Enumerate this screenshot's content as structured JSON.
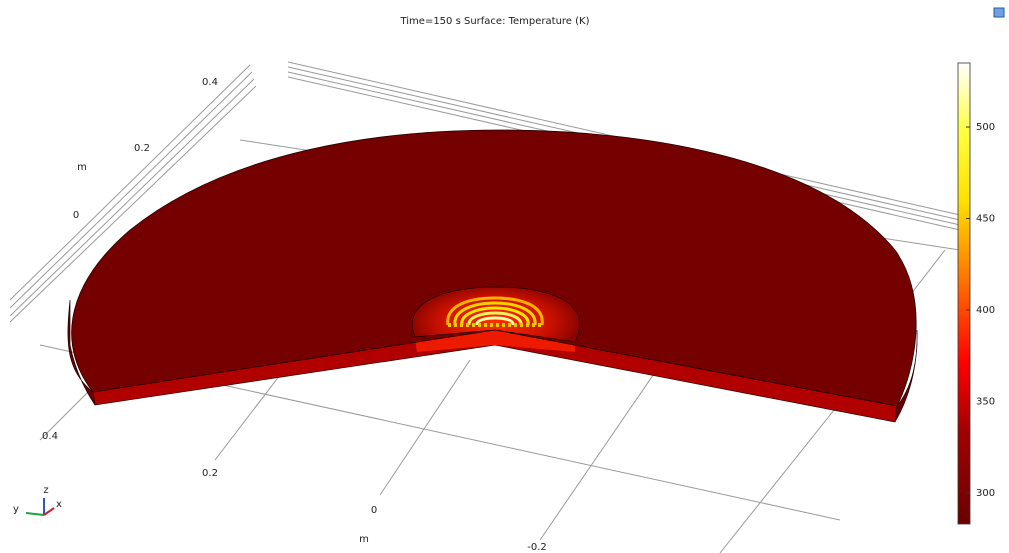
{
  "title": "Time=150 s   Surface: Temperature (K)",
  "axes": {
    "left": {
      "ticks": [
        "0.4",
        "0.2",
        "0"
      ],
      "unit": "m"
    },
    "bottom": {
      "ticks": [
        "0.4",
        "0.2",
        "0",
        "-0.2"
      ],
      "unit": "m"
    },
    "triad": [
      "z",
      "y",
      "x"
    ]
  },
  "colorbar": {
    "range": [
      283,
      535
    ],
    "ticks": [
      300,
      350,
      400,
      450,
      500
    ]
  }
}
